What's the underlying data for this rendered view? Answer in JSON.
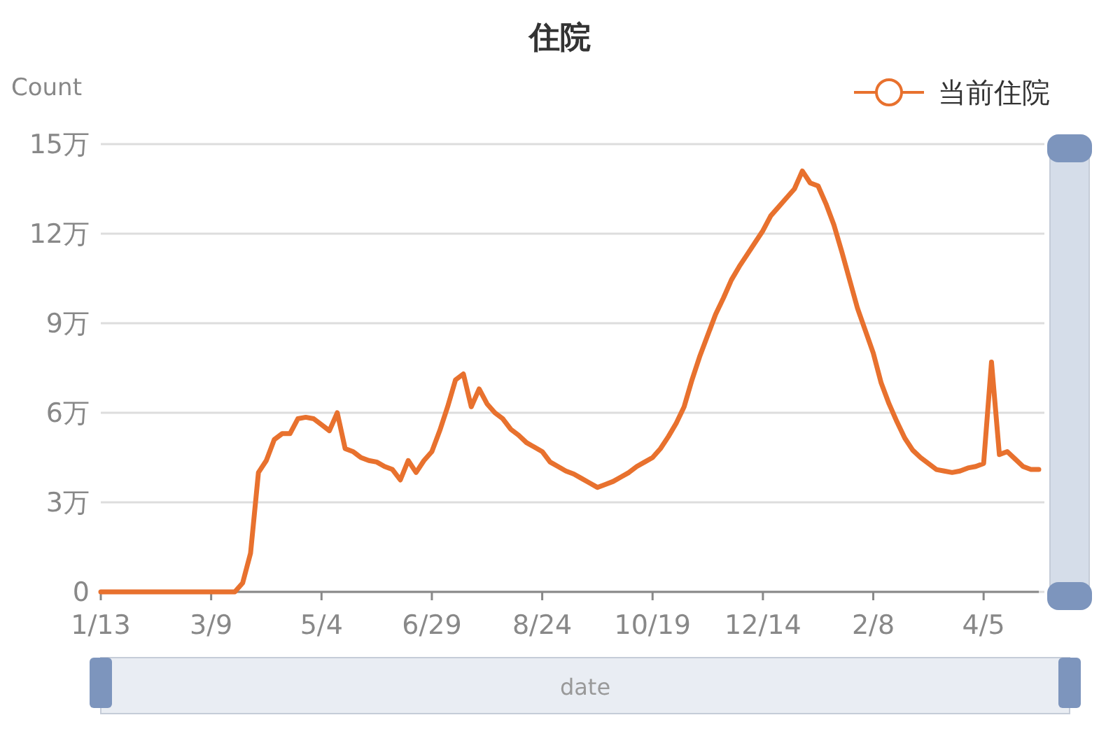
{
  "chart_data": {
    "type": "line",
    "title": "住院",
    "xlabel": "date",
    "ylabel": "Count",
    "legend": "top right",
    "line_style": "solid",
    "grid": "y",
    "categories": [
      "1/13",
      null,
      null,
      null,
      null,
      null,
      null,
      null,
      null,
      null,
      null,
      null,
      null,
      null,
      "3/9",
      null,
      null,
      null,
      null,
      null,
      null,
      null,
      null,
      null,
      null,
      null,
      null,
      null,
      "5/4",
      null,
      null,
      null,
      null,
      null,
      null,
      null,
      null,
      null,
      null,
      null,
      null,
      null,
      "6/29",
      null,
      null,
      null,
      null,
      null,
      null,
      null,
      null,
      null,
      null,
      null,
      null,
      null,
      "8/24",
      null,
      null,
      null,
      null,
      null,
      null,
      null,
      null,
      null,
      null,
      null,
      null,
      null,
      "10/19",
      null,
      null,
      null,
      null,
      null,
      null,
      null,
      null,
      null,
      null,
      null,
      null,
      null,
      "12/14",
      null,
      null,
      null,
      null,
      null,
      null,
      null,
      null,
      null,
      null,
      null,
      null,
      null,
      "2/8",
      null,
      null,
      null,
      null,
      null,
      null,
      null,
      null,
      null,
      null,
      null,
      null,
      null,
      "4/5",
      null,
      null,
      null,
      null,
      null,
      null,
      null
    ],
    "series": [
      {
        "name": "当前住院",
        "color": "#e8712e",
        "values": [
          0,
          0,
          0,
          0,
          0,
          0,
          0,
          0,
          0,
          0,
          0,
          0,
          0,
          0,
          0,
          0,
          0,
          0,
          0.3,
          1.3,
          4,
          4.4,
          5.1,
          5.3,
          5.3,
          5.8,
          5.85,
          5.8,
          5.6,
          5.4,
          6,
          4.8,
          4.7,
          4.5,
          4.4,
          4.35,
          4.2,
          4.1,
          3.75,
          4.4,
          4,
          4.4,
          4.7,
          5.4,
          6.2,
          7.1,
          7.3,
          6.2,
          6.8,
          6.3,
          6,
          5.8,
          5.45,
          5.25,
          5,
          4.85,
          4.7,
          4.35,
          4.2,
          4.05,
          3.95,
          3.8,
          3.65,
          3.5,
          3.6,
          3.7,
          3.85,
          4,
          4.2,
          4.35,
          4.5,
          4.8,
          5.2,
          5.65,
          6.2,
          7.1,
          7.9,
          8.6,
          9.3,
          9.85,
          10.45,
          10.9,
          11.3,
          11.7,
          12.1,
          12.6,
          12.9,
          13.2,
          13.5,
          14.1,
          13.7,
          13.6,
          13,
          12.3,
          11.4,
          10.45,
          9.5,
          8.75,
          8,
          7,
          6.3,
          5.7,
          5.15,
          4.75,
          4.5,
          4.3,
          4.1,
          4.05,
          4,
          4.05,
          4.15,
          4.2,
          4.3,
          7.7,
          4.6,
          4.7,
          4.45,
          4.2,
          4.1,
          4.1
        ]
      }
    ],
    "ylim": [
      0,
      15
    ],
    "yticks": [
      {
        "value": 0,
        "label": "0"
      },
      {
        "value": 3,
        "label": "3万"
      },
      {
        "value": 6,
        "label": "6万"
      },
      {
        "value": 9,
        "label": "9万"
      },
      {
        "value": 12,
        "label": "12万"
      },
      {
        "value": 15,
        "label": "15万"
      }
    ]
  }
}
